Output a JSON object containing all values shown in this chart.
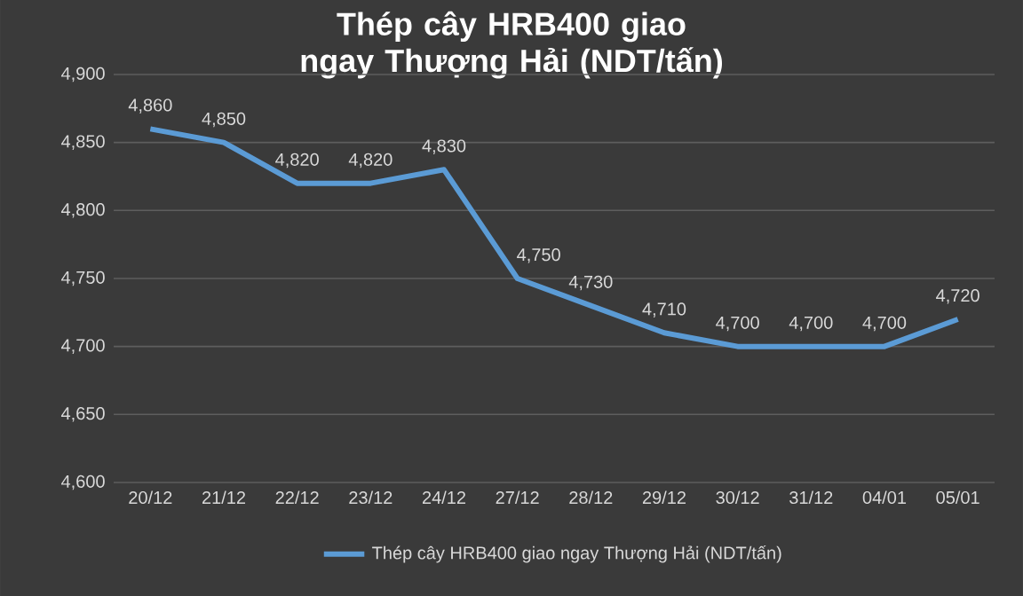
{
  "chart_data": {
    "type": "line",
    "title": "Thép cây HRB400 giao ngay Thượng Hải (NDT/tấn)",
    "categories": [
      "20/12",
      "21/12",
      "22/12",
      "23/12",
      "24/12",
      "27/12",
      "28/12",
      "29/12",
      "30/12",
      "31/12",
      "04/01",
      "05/01"
    ],
    "series": [
      {
        "name": "Thép cây HRB400 giao ngay Thượng Hải (NDT/tấn)",
        "color": "#5b9bd5",
        "values": [
          4860,
          4850,
          4820,
          4820,
          4830,
          4750,
          4730,
          4710,
          4700,
          4700,
          4700,
          4720
        ]
      }
    ],
    "ylim": [
      4600,
      4900
    ],
    "yticks": [
      {
        "value": 4600,
        "label": "4,600"
      },
      {
        "value": 4650,
        "label": "4,650"
      },
      {
        "value": 4700,
        "label": "4,700"
      },
      {
        "value": 4750,
        "label": "4,750"
      },
      {
        "value": 4800,
        "label": "4,800"
      },
      {
        "value": 4850,
        "label": "4,850"
      },
      {
        "value": 4900,
        "label": "4,900"
      }
    ],
    "value_labels": [
      "4,860",
      "4,850",
      "4,820",
      "4,820",
      "4,830",
      "4,750",
      "4,730",
      "4,710",
      "4,700",
      "4,700",
      "4,700",
      "4,720"
    ],
    "grid": "y",
    "legend": "bottom",
    "marker": "none",
    "line_style": "solid"
  }
}
